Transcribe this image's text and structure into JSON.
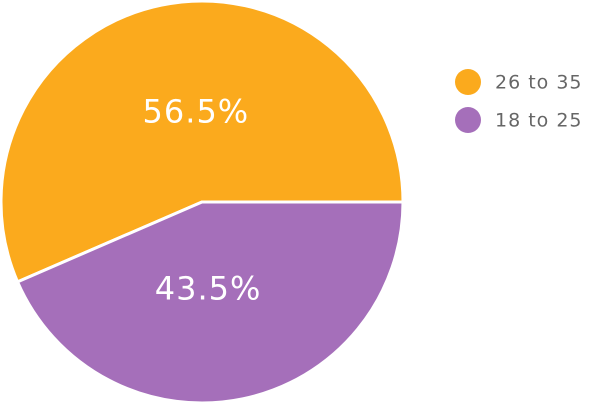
{
  "chart_data": {
    "type": "pie",
    "categories": [
      "26 to 35",
      "18 to 25"
    ],
    "values": [
      56.5,
      43.5
    ],
    "value_labels": [
      "56.5%",
      "43.5%"
    ],
    "colors": [
      "#fbaa1d",
      "#a56fba"
    ],
    "legend": "right"
  }
}
